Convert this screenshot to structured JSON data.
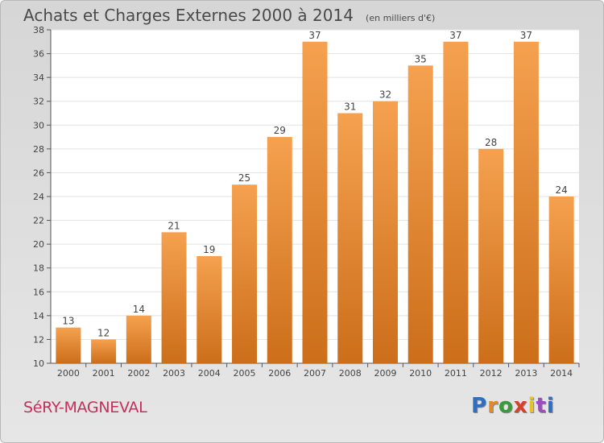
{
  "header": {
    "title": "Achats et Charges Externes 2000 à 2014",
    "subtitle": "(en milliers d'€)"
  },
  "footer": {
    "commune": "SéRY-MAGNEVAL",
    "logo_text": "Proxiti"
  },
  "colors": {
    "bar_light": "#f5a14f",
    "bar_dark": "#cc6e1a",
    "plot_bg": "#ffffff",
    "grid": "#e2e2e2",
    "commune_text": "#c4305b"
  },
  "chart_data": {
    "type": "bar",
    "title": "Achats et Charges Externes 2000 à 2014",
    "subtitle": "(en milliers d'€)",
    "categories": [
      "2000",
      "2001",
      "2002",
      "2003",
      "2004",
      "2005",
      "2006",
      "2007",
      "2008",
      "2009",
      "2010",
      "2011",
      "2012",
      "2013",
      "2014"
    ],
    "values": [
      13,
      12,
      14,
      21,
      19,
      25,
      29,
      37,
      31,
      32,
      35,
      37,
      28,
      37,
      24
    ],
    "ylim": [
      10,
      38
    ],
    "yticks": [
      10,
      12,
      14,
      16,
      18,
      20,
      22,
      24,
      26,
      28,
      30,
      32,
      34,
      36,
      38
    ],
    "grid": true,
    "data_labels": true
  }
}
